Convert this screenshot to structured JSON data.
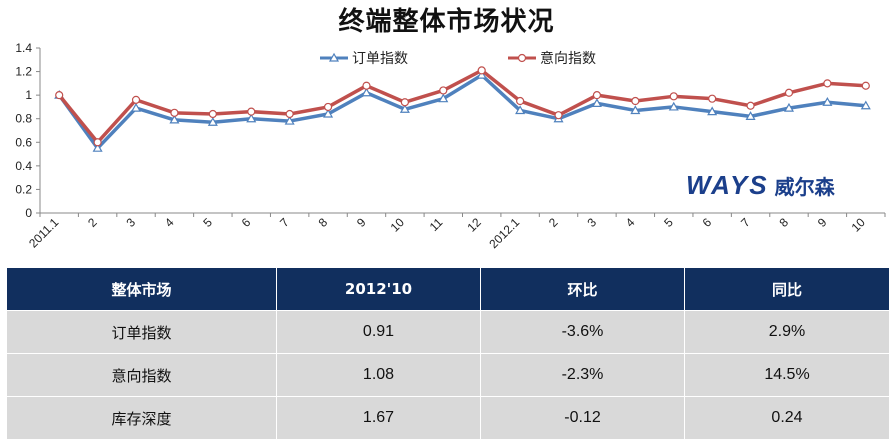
{
  "title": "终端整体市场状况",
  "logo": {
    "en": "WAYS",
    "cn": "威尔森"
  },
  "chart_data": {
    "type": "line",
    "categories": [
      "2011.1",
      "2",
      "3",
      "4",
      "5",
      "6",
      "7",
      "8",
      "9",
      "10",
      "11",
      "12",
      "2012.1",
      "2",
      "3",
      "4",
      "5",
      "6",
      "7",
      "8",
      "9",
      "10"
    ],
    "series": [
      {
        "name": "订单指数",
        "color": "#4f81bd",
        "marker": "triangle",
        "values": [
          1.0,
          0.55,
          0.89,
          0.79,
          0.77,
          0.8,
          0.78,
          0.84,
          1.02,
          0.88,
          0.97,
          1.17,
          0.87,
          0.8,
          0.93,
          0.87,
          0.9,
          0.86,
          0.82,
          0.89,
          0.94,
          0.91
        ]
      },
      {
        "name": "意向指数",
        "color": "#c0504d",
        "marker": "circle",
        "values": [
          1.0,
          0.6,
          0.96,
          0.85,
          0.84,
          0.86,
          0.84,
          0.9,
          1.08,
          0.94,
          1.04,
          1.21,
          0.95,
          0.83,
          1.0,
          0.95,
          0.99,
          0.97,
          0.91,
          1.02,
          1.1,
          1.08
        ]
      }
    ],
    "ylim": [
      0,
      1.4
    ],
    "yticks": [
      "0",
      "0.2",
      "0.4",
      "0.6",
      "0.8",
      "1",
      "1.2",
      "1.4"
    ],
    "grid": false,
    "legend": "top-center"
  },
  "table": {
    "headers": [
      "整体市场",
      "2012'10",
      "环比",
      "同比"
    ],
    "rows": [
      [
        "订单指数",
        "0.91",
        "-3.6%",
        "2.9%"
      ],
      [
        "意向指数",
        "1.08",
        "-2.3%",
        "14.5%"
      ],
      [
        "库存深度",
        "1.67",
        "-0.12",
        "0.24"
      ]
    ]
  }
}
